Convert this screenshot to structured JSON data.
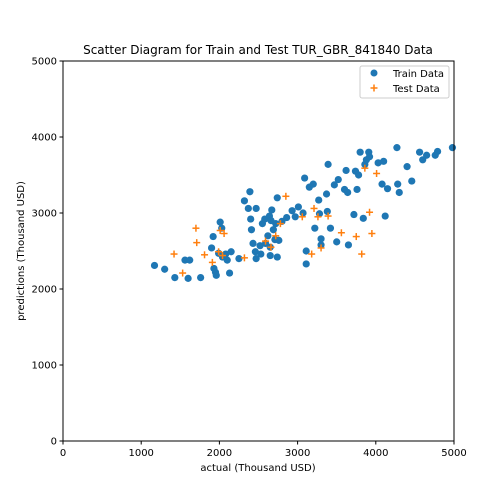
{
  "chart_data": {
    "type": "scatter",
    "title": "Scatter Diagram for Train and Test TUR_GBR_841840 Data",
    "xlabel": "actual (Thousand USD)",
    "ylabel": "predictions (Thousand USD)",
    "xlim": [
      0,
      5000
    ],
    "ylim": [
      0,
      5000
    ],
    "xticks": [
      0,
      1000,
      2000,
      3000,
      4000,
      5000
    ],
    "yticks": [
      0,
      1000,
      2000,
      3000,
      4000,
      5000
    ],
    "grid": false,
    "legend_position": "top-right",
    "series": [
      {
        "name": "Train Data",
        "marker": "circle",
        "color": "#1f77b4",
        "points": [
          [
            1170,
            2310
          ],
          [
            1300,
            2260
          ],
          [
            1430,
            2150
          ],
          [
            1560,
            2380
          ],
          [
            1600,
            2140
          ],
          [
            1620,
            2380
          ],
          [
            1760,
            2150
          ],
          [
            1900,
            2540
          ],
          [
            1920,
            2690
          ],
          [
            1930,
            2270
          ],
          [
            1950,
            2220
          ],
          [
            1960,
            2180
          ],
          [
            1990,
            2470
          ],
          [
            2010,
            2880
          ],
          [
            2030,
            2800
          ],
          [
            2040,
            2420
          ],
          [
            2080,
            2460
          ],
          [
            2100,
            2380
          ],
          [
            2130,
            2210
          ],
          [
            2150,
            2490
          ],
          [
            2250,
            2400
          ],
          [
            2320,
            3160
          ],
          [
            2370,
            3060
          ],
          [
            2390,
            3280
          ],
          [
            2400,
            2920
          ],
          [
            2410,
            2780
          ],
          [
            2430,
            2600
          ],
          [
            2460,
            2490
          ],
          [
            2470,
            2400
          ],
          [
            2470,
            3060
          ],
          [
            2520,
            2570
          ],
          [
            2530,
            2460
          ],
          [
            2550,
            2860
          ],
          [
            2580,
            2920
          ],
          [
            2590,
            2600
          ],
          [
            2620,
            2700
          ],
          [
            2640,
            2960
          ],
          [
            2650,
            2440
          ],
          [
            2650,
            2550
          ],
          [
            2660,
            2900
          ],
          [
            2670,
            3040
          ],
          [
            2690,
            2780
          ],
          [
            2710,
            2650
          ],
          [
            2720,
            2860
          ],
          [
            2740,
            2420
          ],
          [
            2740,
            3200
          ],
          [
            2760,
            2640
          ],
          [
            2800,
            2890
          ],
          [
            2860,
            2940
          ],
          [
            2930,
            3030
          ],
          [
            2970,
            2950
          ],
          [
            3010,
            3080
          ],
          [
            3070,
            3000
          ],
          [
            3090,
            3460
          ],
          [
            3110,
            2500
          ],
          [
            3110,
            2330
          ],
          [
            3150,
            3340
          ],
          [
            3200,
            3380
          ],
          [
            3220,
            2800
          ],
          [
            3270,
            3170
          ],
          [
            3280,
            2990
          ],
          [
            3300,
            2660
          ],
          [
            3300,
            2580
          ],
          [
            3370,
            3250
          ],
          [
            3380,
            3020
          ],
          [
            3390,
            3640
          ],
          [
            3420,
            2800
          ],
          [
            3470,
            3370
          ],
          [
            3500,
            2620
          ],
          [
            3520,
            3440
          ],
          [
            3600,
            3310
          ],
          [
            3620,
            3560
          ],
          [
            3640,
            3270
          ],
          [
            3650,
            2580
          ],
          [
            3720,
            2980
          ],
          [
            3740,
            3550
          ],
          [
            3760,
            3310
          ],
          [
            3780,
            3500
          ],
          [
            3800,
            3800
          ],
          [
            3840,
            2930
          ],
          [
            3860,
            3640
          ],
          [
            3880,
            3700
          ],
          [
            3910,
            3800
          ],
          [
            3920,
            3740
          ],
          [
            4030,
            3660
          ],
          [
            4080,
            3380
          ],
          [
            4100,
            3680
          ],
          [
            4120,
            2960
          ],
          [
            4150,
            3320
          ],
          [
            4270,
            3860
          ],
          [
            4280,
            3380
          ],
          [
            4300,
            3270
          ],
          [
            4400,
            3610
          ],
          [
            4460,
            3420
          ],
          [
            4560,
            3800
          ],
          [
            4600,
            3700
          ],
          [
            4650,
            3760
          ],
          [
            4760,
            3760
          ],
          [
            4790,
            3810
          ],
          [
            4980,
            3860
          ]
        ]
      },
      {
        "name": "Test Data",
        "marker": "plus",
        "color": "#ff7f0e",
        "points": [
          [
            1420,
            2460
          ],
          [
            1530,
            2210
          ],
          [
            1700,
            2800
          ],
          [
            1710,
            2610
          ],
          [
            1810,
            2450
          ],
          [
            1910,
            2350
          ],
          [
            1990,
            2490
          ],
          [
            2010,
            2770
          ],
          [
            2040,
            2440
          ],
          [
            2060,
            2730
          ],
          [
            2320,
            2410
          ],
          [
            2590,
            2630
          ],
          [
            2660,
            2550
          ],
          [
            2720,
            2700
          ],
          [
            2780,
            2860
          ],
          [
            2850,
            3220
          ],
          [
            3060,
            2950
          ],
          [
            3180,
            2460
          ],
          [
            3210,
            3060
          ],
          [
            3260,
            2950
          ],
          [
            3300,
            2540
          ],
          [
            3390,
            2960
          ],
          [
            3560,
            2740
          ],
          [
            3750,
            2690
          ],
          [
            3820,
            2460
          ],
          [
            3860,
            3590
          ],
          [
            3920,
            3010
          ],
          [
            3950,
            2730
          ],
          [
            4010,
            3520
          ]
        ]
      }
    ]
  }
}
